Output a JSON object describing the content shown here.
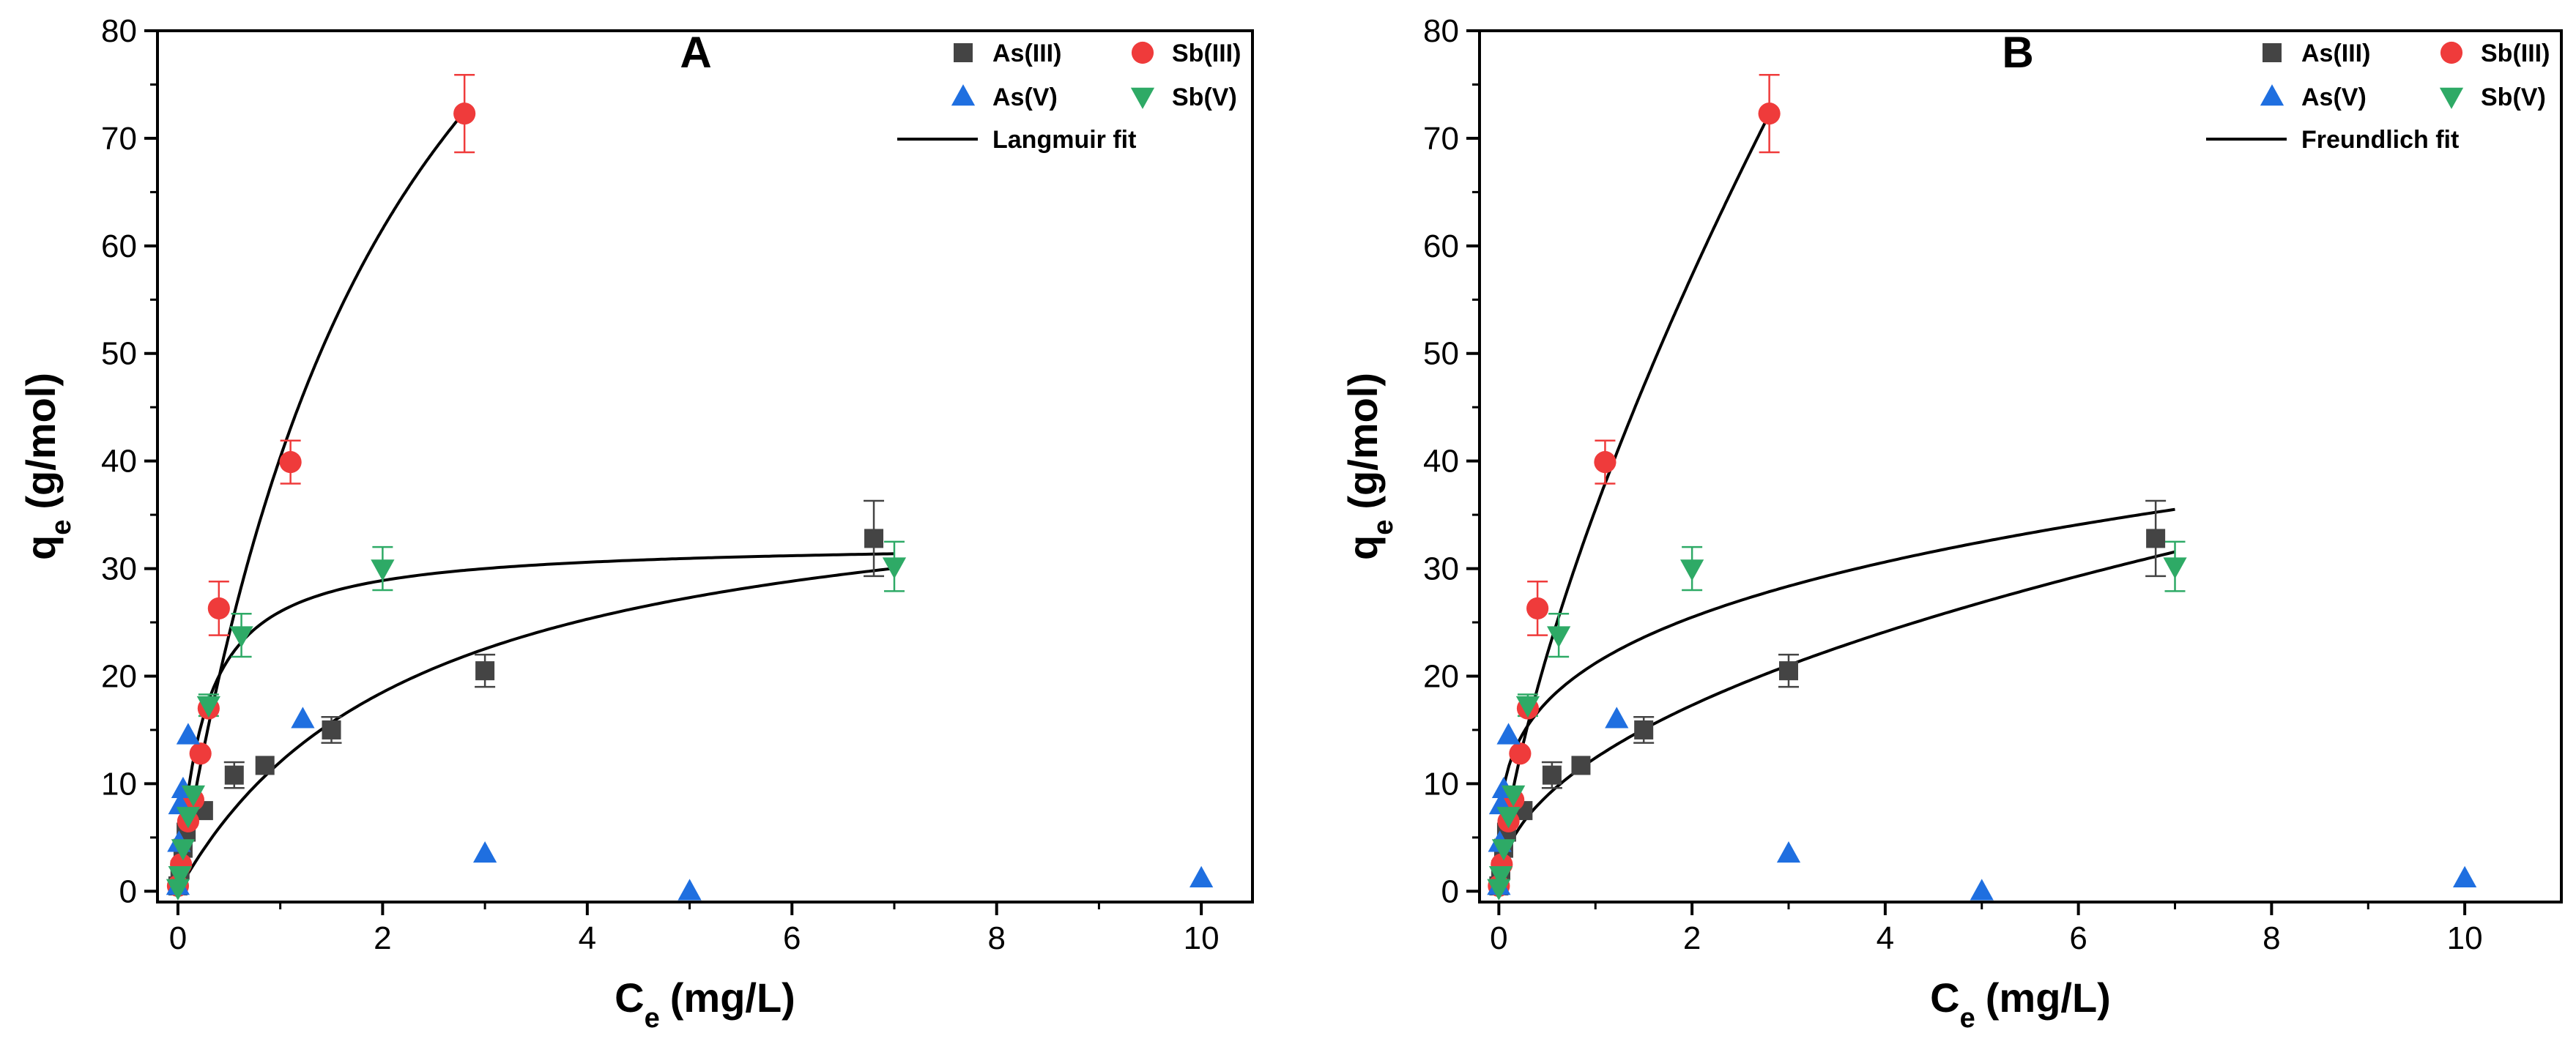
{
  "colors": {
    "As(III)": "#444444",
    "Sb(III)": "#ef3b3b",
    "As(V)": "#1f6fe0",
    "Sb(V)": "#2eaa66",
    "fit": "#000000",
    "errbar_red": "#ef3b3b",
    "errbar_grey": "#444444",
    "errbar_green": "#2eaa66"
  },
  "chart_data": [
    {
      "type": "scatter",
      "panel_label": "A",
      "xlabel": "C",
      "xlabel_sub": "e",
      "xlabel_unit": "(mg/L)",
      "ylabel": "q",
      "ylabel_sub": "e",
      "ylabel_unit": "(g/mol)",
      "xlim": [
        -0.2,
        10.5
      ],
      "ylim": [
        -1,
        80
      ],
      "xticks": [
        0,
        2,
        4,
        6,
        8,
        10
      ],
      "yticks": [
        0,
        10,
        20,
        30,
        40,
        50,
        60,
        70,
        80
      ],
      "legend_position": "top-right",
      "legend": [
        {
          "label": "As(III)",
          "marker": "square"
        },
        {
          "label": "Sb(III)",
          "marker": "circle"
        },
        {
          "label": "As(V)",
          "marker": "triangle-up"
        },
        {
          "label": "Sb(V)",
          "marker": "triangle-down"
        },
        {
          "label": "Langmuir fit",
          "marker": "line"
        }
      ],
      "series": [
        {
          "name": "As(III)",
          "marker": "square",
          "points": [
            {
              "x": 0.0,
              "y": 0.5
            },
            {
              "x": 0.02,
              "y": 2.0
            },
            {
              "x": 0.05,
              "y": 4.0
            },
            {
              "x": 0.08,
              "y": 5.5
            },
            {
              "x": 0.25,
              "y": 7.5
            },
            {
              "x": 0.55,
              "y": 10.8,
              "err": 1.2
            },
            {
              "x": 0.85,
              "y": 11.7
            },
            {
              "x": 1.5,
              "y": 15.0,
              "err": 1.2
            },
            {
              "x": 3.0,
              "y": 20.5,
              "err": 1.5
            },
            {
              "x": 6.8,
              "y": 32.8,
              "err": 3.5
            }
          ]
        },
        {
          "name": "Sb(III)",
          "marker": "circle",
          "points": [
            {
              "x": 0.0,
              "y": 0.5
            },
            {
              "x": 0.03,
              "y": 2.5
            },
            {
              "x": 0.1,
              "y": 6.5
            },
            {
              "x": 0.15,
              "y": 8.5
            },
            {
              "x": 0.22,
              "y": 12.8
            },
            {
              "x": 0.3,
              "y": 17.0
            },
            {
              "x": 0.4,
              "y": 26.3,
              "err": 2.5
            },
            {
              "x": 1.1,
              "y": 39.9,
              "err": 2.0
            },
            {
              "x": 2.8,
              "y": 72.3,
              "err": 3.6
            }
          ]
        },
        {
          "name": "As(V)",
          "marker": "triangle-up",
          "points": [
            {
              "x": 0.0,
              "y": 0.5
            },
            {
              "x": 0.01,
              "y": 4.5
            },
            {
              "x": 0.02,
              "y": 8.0
            },
            {
              "x": 0.05,
              "y": 9.5
            },
            {
              "x": 0.1,
              "y": 14.5
            },
            {
              "x": 1.22,
              "y": 16.0
            },
            {
              "x": 3.0,
              "y": 3.5
            },
            {
              "x": 5.0,
              "y": 0.0
            },
            {
              "x": 10.0,
              "y": 1.2
            }
          ]
        },
        {
          "name": "Sb(V)",
          "marker": "triangle-down",
          "points": [
            {
              "x": 0.0,
              "y": 0.3
            },
            {
              "x": 0.02,
              "y": 1.5
            },
            {
              "x": 0.05,
              "y": 4.0
            },
            {
              "x": 0.1,
              "y": 7.0
            },
            {
              "x": 0.15,
              "y": 9.0
            },
            {
              "x": 0.3,
              "y": 17.3,
              "err": 1.0
            },
            {
              "x": 0.62,
              "y": 23.8,
              "err": 2.0
            },
            {
              "x": 2.0,
              "y": 30.0,
              "err": 2.0
            },
            {
              "x": 7.0,
              "y": 30.2,
              "err": 2.3
            }
          ]
        }
      ],
      "fits": [
        {
          "name": "Sb(III) Langmuir fit",
          "model": "langmuir",
          "qmax": 130,
          "K": 0.45,
          "xmax": 2.8
        },
        {
          "name": "Sb(V) Langmuir fit",
          "model": "langmuir",
          "qmax": 32.5,
          "K": 4.0,
          "xmax": 7.0
        },
        {
          "name": "As(III) Langmuir fit",
          "model": "langmuir",
          "qmax": 40,
          "K": 0.43,
          "xmax": 7.0
        }
      ]
    },
    {
      "type": "scatter",
      "panel_label": "B",
      "xlabel": "C",
      "xlabel_sub": "e",
      "xlabel_unit": "(mg/L)",
      "ylabel": "q",
      "ylabel_sub": "e",
      "ylabel_unit": "(g/mol)",
      "xlim": [
        -0.2,
        11.0
      ],
      "ylim": [
        -1,
        80
      ],
      "xticks": [
        0,
        2,
        4,
        6,
        8,
        10
      ],
      "yticks": [
        0,
        10,
        20,
        30,
        40,
        50,
        60,
        70,
        80
      ],
      "legend_position": "top-right",
      "legend": [
        {
          "label": "As(III)",
          "marker": "square"
        },
        {
          "label": "Sb(III)",
          "marker": "circle"
        },
        {
          "label": "As(V)",
          "marker": "triangle-up"
        },
        {
          "label": "Sb(V)",
          "marker": "triangle-down"
        },
        {
          "label": "Freundlich fit",
          "marker": "line"
        }
      ],
      "series": [
        {
          "name": "As(III)",
          "marker": "square",
          "points": [
            {
              "x": 0.0,
              "y": 0.5
            },
            {
              "x": 0.02,
              "y": 2.0
            },
            {
              "x": 0.05,
              "y": 4.0
            },
            {
              "x": 0.08,
              "y": 5.5
            },
            {
              "x": 0.25,
              "y": 7.5
            },
            {
              "x": 0.55,
              "y": 10.8,
              "err": 1.2
            },
            {
              "x": 0.85,
              "y": 11.7
            },
            {
              "x": 1.5,
              "y": 15.0,
              "err": 1.2
            },
            {
              "x": 3.0,
              "y": 20.5,
              "err": 1.5
            },
            {
              "x": 6.8,
              "y": 32.8,
              "err": 3.5
            }
          ]
        },
        {
          "name": "Sb(III)",
          "marker": "circle",
          "points": [
            {
              "x": 0.0,
              "y": 0.5
            },
            {
              "x": 0.03,
              "y": 2.5
            },
            {
              "x": 0.1,
              "y": 6.5
            },
            {
              "x": 0.15,
              "y": 8.5
            },
            {
              "x": 0.22,
              "y": 12.8
            },
            {
              "x": 0.3,
              "y": 17.0
            },
            {
              "x": 0.4,
              "y": 26.3,
              "err": 2.5
            },
            {
              "x": 1.1,
              "y": 39.9,
              "err": 2.0
            },
            {
              "x": 2.8,
              "y": 72.3,
              "err": 3.6
            }
          ]
        },
        {
          "name": "As(V)",
          "marker": "triangle-up",
          "points": [
            {
              "x": 0.0,
              "y": 0.5
            },
            {
              "x": 0.01,
              "y": 4.5
            },
            {
              "x": 0.02,
              "y": 8.0
            },
            {
              "x": 0.05,
              "y": 9.5
            },
            {
              "x": 0.1,
              "y": 14.5
            },
            {
              "x": 1.22,
              "y": 16.0
            },
            {
              "x": 3.0,
              "y": 3.5
            },
            {
              "x": 5.0,
              "y": 0.0
            },
            {
              "x": 10.0,
              "y": 1.2
            }
          ]
        },
        {
          "name": "Sb(V)",
          "marker": "triangle-down",
          "points": [
            {
              "x": 0.0,
              "y": 0.3
            },
            {
              "x": 0.02,
              "y": 1.5
            },
            {
              "x": 0.05,
              "y": 4.0
            },
            {
              "x": 0.1,
              "y": 7.0
            },
            {
              "x": 0.15,
              "y": 9.0
            },
            {
              "x": 0.3,
              "y": 17.3,
              "err": 1.0
            },
            {
              "x": 0.62,
              "y": 23.8,
              "err": 2.0
            },
            {
              "x": 2.0,
              "y": 30.0,
              "err": 2.0
            },
            {
              "x": 7.0,
              "y": 30.2,
              "err": 2.3
            }
          ]
        }
      ],
      "fits": [
        {
          "name": "Sb(III) Freundlich fit",
          "model": "freundlich",
          "Kf": 35.5,
          "n": 0.69,
          "xmax": 2.8
        },
        {
          "name": "Sb(V) Freundlich fit",
          "model": "freundlich",
          "Kf": 21.2,
          "n": 0.265,
          "xmax": 7.0
        },
        {
          "name": "As(III) Freundlich fit",
          "model": "freundlich",
          "Kf": 12.4,
          "n": 0.48,
          "xmax": 7.0
        }
      ]
    }
  ]
}
